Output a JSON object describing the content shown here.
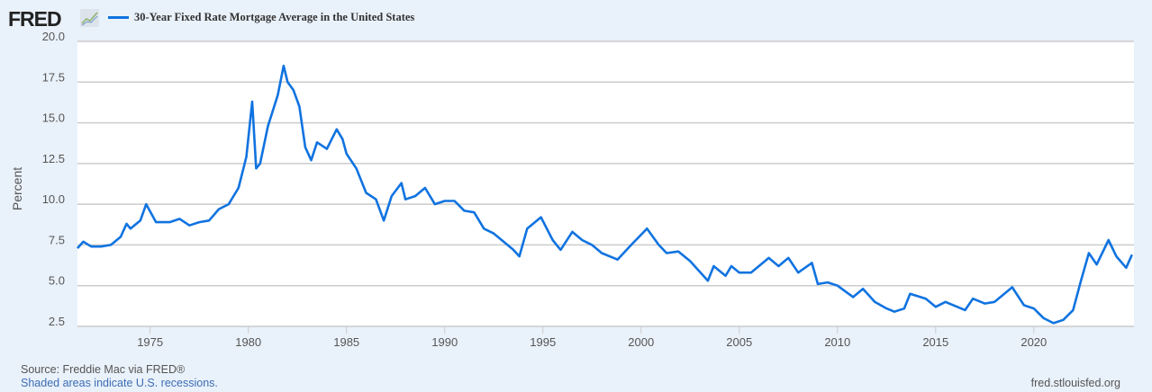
{
  "header": {
    "logo": "FRED",
    "logo_icon": "line-chart-icon"
  },
  "footer": {
    "source": "Source: Freddie Mac via FRED®",
    "recessions": "Shaded areas indicate U.S. recessions.",
    "url": "fred.stlouisfed.org"
  },
  "chart_data": {
    "type": "line",
    "title": "",
    "xlabel": "",
    "ylabel": "Percent",
    "xlim": [
      1971.3,
      2025.1
    ],
    "ylim": [
      2.5,
      20.0
    ],
    "yticks": [
      "2.5",
      "5.0",
      "7.5",
      "10.0",
      "12.5",
      "15.0",
      "17.5",
      "20.0"
    ],
    "xticks": [
      "1975",
      "1980",
      "1985",
      "1990",
      "1995",
      "2000",
      "2005",
      "2010",
      "2015",
      "2020"
    ],
    "grid": true,
    "legend_position": "top-left",
    "line_color": "#1073e0",
    "series": [
      {
        "name": "30-Year Fixed Rate Mortgage Average in the United States",
        "x": [
          1971.3,
          1971.6,
          1972,
          1972.5,
          1973,
          1973.5,
          1973.8,
          1974,
          1974.5,
          1974.8,
          1975.3,
          1976,
          1976.5,
          1977,
          1977.5,
          1978,
          1978.5,
          1979,
          1979.5,
          1979.9,
          1980.2,
          1980.4,
          1980.6,
          1981,
          1981.5,
          1981.8,
          1982,
          1982.3,
          1982.6,
          1982.9,
          1983.2,
          1983.5,
          1984,
          1984.5,
          1984.8,
          1985,
          1985.5,
          1986,
          1986.5,
          1986.9,
          1987.3,
          1987.8,
          1988,
          1988.5,
          1989,
          1989.5,
          1990,
          1990.5,
          1991,
          1991.5,
          1992,
          1992.5,
          1993,
          1993.5,
          1993.8,
          1994.2,
          1994.9,
          1995.5,
          1995.9,
          1996.5,
          1997,
          1997.5,
          1998,
          1998.8,
          1999.5,
          2000.3,
          2000.9,
          2001.3,
          2001.9,
          2002.5,
          2003.4,
          2003.7,
          2004.3,
          2004.6,
          2005,
          2005.6,
          2006.5,
          2007,
          2007.5,
          2008,
          2008.7,
          2009,
          2009.5,
          2010,
          2010.8,
          2011.3,
          2011.9,
          2012.5,
          2012.9,
          2013.4,
          2013.7,
          2014.5,
          2015,
          2015.5,
          2016.5,
          2016.9,
          2017.5,
          2018,
          2018.9,
          2019.5,
          2020,
          2020.5,
          2021,
          2021.5,
          2022,
          2022.4,
          2022.8,
          2023.2,
          2023.8,
          2024.2,
          2024.7,
          2025
        ],
        "y": [
          7.3,
          7.7,
          7.4,
          7.4,
          7.5,
          8.0,
          8.8,
          8.5,
          9.0,
          10.0,
          8.9,
          8.9,
          9.1,
          8.7,
          8.9,
          9.0,
          9.7,
          10.0,
          11.0,
          12.9,
          16.3,
          12.2,
          12.5,
          14.8,
          16.7,
          18.5,
          17.5,
          17.0,
          16.0,
          13.5,
          12.7,
          13.8,
          13.4,
          14.6,
          14.0,
          13.1,
          12.2,
          10.7,
          10.3,
          9.0,
          10.5,
          11.3,
          10.3,
          10.5,
          11.0,
          10.0,
          10.2,
          10.2,
          9.6,
          9.5,
          8.5,
          8.2,
          7.7,
          7.2,
          6.8,
          8.5,
          9.2,
          7.8,
          7.2,
          8.3,
          7.8,
          7.5,
          7.0,
          6.6,
          7.5,
          8.5,
          7.5,
          7.0,
          7.1,
          6.5,
          5.3,
          6.2,
          5.6,
          6.2,
          5.8,
          5.8,
          6.7,
          6.2,
          6.7,
          5.8,
          6.4,
          5.1,
          5.2,
          5.0,
          4.3,
          4.8,
          4.0,
          3.6,
          3.4,
          3.6,
          4.5,
          4.2,
          3.7,
          4.0,
          3.5,
          4.2,
          3.9,
          4.0,
          4.9,
          3.8,
          3.6,
          3.0,
          2.7,
          2.9,
          3.5,
          5.3,
          7.0,
          6.3,
          7.8,
          6.8,
          6.1,
          6.9
        ]
      }
    ]
  }
}
